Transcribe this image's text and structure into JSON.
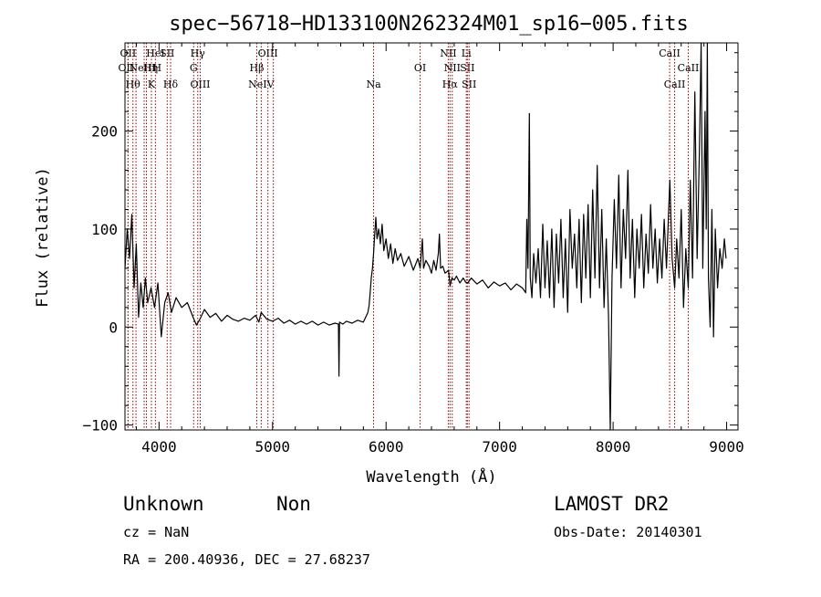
{
  "chart_data": {
    "type": "line",
    "title": "spec−56718−HD133100N262324M01_sp16−005.fits",
    "xlabel": "Wavelength (Å)",
    "ylabel": "Flux (relative)",
    "xlim": [
      3700,
      9100
    ],
    "ylim": [
      -105,
      290
    ],
    "xticks": [
      4000,
      5000,
      6000,
      7000,
      8000,
      9000
    ],
    "yticks": [
      -100,
      0,
      100,
      200
    ],
    "tick_labels_y": [
      "−100",
      "0",
      "100",
      "200"
    ],
    "grid": false,
    "series": [
      {
        "color": "#000000",
        "points": [
          [
            3700,
            60
          ],
          [
            3720,
            100
          ],
          [
            3740,
            70
          ],
          [
            3760,
            115
          ],
          [
            3780,
            40
          ],
          [
            3800,
            85
          ],
          [
            3820,
            10
          ],
          [
            3840,
            45
          ],
          [
            3860,
            20
          ],
          [
            3880,
            50
          ],
          [
            3900,
            25
          ],
          [
            3930,
            40
          ],
          [
            3960,
            20
          ],
          [
            3990,
            45
          ],
          [
            4020,
            -10
          ],
          [
            4050,
            25
          ],
          [
            4080,
            35
          ],
          [
            4110,
            15
          ],
          [
            4150,
            30
          ],
          [
            4200,
            20
          ],
          [
            4250,
            25
          ],
          [
            4300,
            10
          ],
          [
            4330,
            2
          ],
          [
            4360,
            8
          ],
          [
            4400,
            18
          ],
          [
            4450,
            10
          ],
          [
            4500,
            14
          ],
          [
            4550,
            6
          ],
          [
            4600,
            12
          ],
          [
            4650,
            8
          ],
          [
            4700,
            6
          ],
          [
            4750,
            9
          ],
          [
            4800,
            7
          ],
          [
            4850,
            12
          ],
          [
            4880,
            5
          ],
          [
            4900,
            15
          ],
          [
            4950,
            8
          ],
          [
            5000,
            6
          ],
          [
            5050,
            9
          ],
          [
            5100,
            4
          ],
          [
            5150,
            7
          ],
          [
            5200,
            3
          ],
          [
            5250,
            6
          ],
          [
            5300,
            3
          ],
          [
            5350,
            6
          ],
          [
            5400,
            2
          ],
          [
            5450,
            5
          ],
          [
            5500,
            2
          ],
          [
            5550,
            4
          ],
          [
            5580,
            3
          ],
          [
            5585,
            -50
          ],
          [
            5590,
            5
          ],
          [
            5620,
            3
          ],
          [
            5650,
            6
          ],
          [
            5700,
            4
          ],
          [
            5750,
            7
          ],
          [
            5800,
            5
          ],
          [
            5820,
            10
          ],
          [
            5840,
            15
          ],
          [
            5850,
            22
          ],
          [
            5860,
            35
          ],
          [
            5870,
            50
          ],
          [
            5880,
            60
          ],
          [
            5890,
            75
          ],
          [
            5900,
            95
          ],
          [
            5910,
            112
          ],
          [
            5920,
            90
          ],
          [
            5935,
            100
          ],
          [
            5950,
            85
          ],
          [
            5965,
            105
          ],
          [
            5980,
            78
          ],
          [
            6000,
            90
          ],
          [
            6020,
            70
          ],
          [
            6040,
            85
          ],
          [
            6060,
            65
          ],
          [
            6080,
            80
          ],
          [
            6100,
            68
          ],
          [
            6130,
            75
          ],
          [
            6160,
            62
          ],
          [
            6200,
            72
          ],
          [
            6240,
            58
          ],
          [
            6280,
            70
          ],
          [
            6300,
            60
          ],
          [
            6320,
            90
          ],
          [
            6330,
            60
          ],
          [
            6350,
            68
          ],
          [
            6380,
            62
          ],
          [
            6400,
            55
          ],
          [
            6420,
            68
          ],
          [
            6440,
            58
          ],
          [
            6460,
            75
          ],
          [
            6470,
            95
          ],
          [
            6480,
            60
          ],
          [
            6500,
            62
          ],
          [
            6520,
            55
          ],
          [
            6550,
            58
          ],
          [
            6563,
            42
          ],
          [
            6580,
            50
          ],
          [
            6600,
            48
          ],
          [
            6620,
            52
          ],
          [
            6650,
            45
          ],
          [
            6680,
            50
          ],
          [
            6700,
            46
          ],
          [
            6720,
            45
          ],
          [
            6750,
            50
          ],
          [
            6800,
            44
          ],
          [
            6850,
            48
          ],
          [
            6900,
            40
          ],
          [
            6950,
            46
          ],
          [
            7000,
            42
          ],
          [
            7050,
            45
          ],
          [
            7100,
            38
          ],
          [
            7150,
            44
          ],
          [
            7200,
            40
          ],
          [
            7230,
            35
          ],
          [
            7240,
            110
          ],
          [
            7250,
            60
          ],
          [
            7262,
            218
          ],
          [
            7270,
            50
          ],
          [
            7285,
            30
          ],
          [
            7300,
            75
          ],
          [
            7320,
            45
          ],
          [
            7340,
            80
          ],
          [
            7360,
            30
          ],
          [
            7380,
            105
          ],
          [
            7400,
            40
          ],
          [
            7420,
            88
          ],
          [
            7440,
            30
          ],
          [
            7460,
            100
          ],
          [
            7480,
            20
          ],
          [
            7500,
            95
          ],
          [
            7520,
            45
          ],
          [
            7540,
            110
          ],
          [
            7560,
            30
          ],
          [
            7580,
            90
          ],
          [
            7600,
            15
          ],
          [
            7620,
            120
          ],
          [
            7640,
            60
          ],
          [
            7660,
            95
          ],
          [
            7680,
            40
          ],
          [
            7700,
            110
          ],
          [
            7720,
            25
          ],
          [
            7740,
            115
          ],
          [
            7760,
            50
          ],
          [
            7780,
            125
          ],
          [
            7800,
            30
          ],
          [
            7820,
            140
          ],
          [
            7840,
            50
          ],
          [
            7860,
            165
          ],
          [
            7880,
            40
          ],
          [
            7900,
            120
          ],
          [
            7920,
            20
          ],
          [
            7940,
            90
          ],
          [
            7960,
            10
          ],
          [
            7975,
            -105
          ],
          [
            7990,
            50
          ],
          [
            8010,
            130
          ],
          [
            8030,
            60
          ],
          [
            8050,
            155
          ],
          [
            8070,
            40
          ],
          [
            8090,
            120
          ],
          [
            8110,
            70
          ],
          [
            8130,
            160
          ],
          [
            8150,
            50
          ],
          [
            8170,
            110
          ],
          [
            8190,
            30
          ],
          [
            8210,
            100
          ],
          [
            8230,
            60
          ],
          [
            8250,
            115
          ],
          [
            8270,
            40
          ],
          [
            8290,
            95
          ],
          [
            8310,
            55
          ],
          [
            8330,
            125
          ],
          [
            8350,
            60
          ],
          [
            8370,
            100
          ],
          [
            8390,
            45
          ],
          [
            8410,
            90
          ],
          [
            8430,
            50
          ],
          [
            8450,
            110
          ],
          [
            8470,
            60
          ],
          [
            8500,
            150
          ],
          [
            8520,
            70
          ],
          [
            8542,
            40
          ],
          [
            8560,
            90
          ],
          [
            8580,
            50
          ],
          [
            8600,
            120
          ],
          [
            8620,
            20
          ],
          [
            8640,
            80
          ],
          [
            8662,
            40
          ],
          [
            8680,
            150
          ],
          [
            8700,
            50
          ],
          [
            8720,
            240
          ],
          [
            8740,
            70
          ],
          [
            8760,
            180
          ],
          [
            8775,
            290
          ],
          [
            8790,
            60
          ],
          [
            8810,
            220
          ],
          [
            8820,
            100
          ],
          [
            8830,
            290
          ],
          [
            8840,
            50
          ],
          [
            8855,
            0
          ],
          [
            8870,
            120
          ],
          [
            8885,
            -10
          ],
          [
            8900,
            100
          ],
          [
            8920,
            40
          ],
          [
            8940,
            80
          ],
          [
            8960,
            60
          ],
          [
            8980,
            90
          ],
          [
            8995,
            70
          ]
        ]
      }
    ],
    "line_color": "#990000",
    "spectral_lines": [
      {
        "wave": 3727,
        "label": "OII",
        "row": 0,
        "dx": 0
      },
      {
        "wave": 3727,
        "label": "OII",
        "row": 1,
        "dx": -2
      },
      {
        "wave": 3770,
        "label": "Hθ",
        "row": 2,
        "dx": 0
      },
      {
        "wave": 3797,
        "label": "Hη",
        "row": 1,
        "dx": 16
      },
      {
        "wave": 3869,
        "label": "NeIII",
        "row": 1,
        "dx": -2
      },
      {
        "wave": 3889,
        "label": "HeI",
        "row": 0,
        "dx": 10
      },
      {
        "wave": 3933,
        "label": "K",
        "row": 2,
        "dx": 0
      },
      {
        "wave": 3968,
        "label": "H",
        "row": 1,
        "dx": 2
      },
      {
        "wave": 4072,
        "label": "SII",
        "row": 0,
        "dx": 0
      },
      {
        "wave": 4102,
        "label": "Hδ",
        "row": 2,
        "dx": 0
      },
      {
        "wave": 4305,
        "label": "G",
        "row": 1,
        "dx": 0
      },
      {
        "wave": 4341,
        "label": "Hγ",
        "row": 0,
        "dx": 0
      },
      {
        "wave": 4363,
        "label": "OIII",
        "row": 2,
        "dx": 0
      },
      {
        "wave": 4861,
        "label": "Hβ",
        "row": 1,
        "dx": 0
      },
      {
        "wave": 4900,
        "label": "NeIV",
        "row": 2,
        "dx": 0
      },
      {
        "wave": 4959,
        "label": "OIII",
        "row": 0,
        "dx": 0
      },
      {
        "wave": 5007,
        "label": "",
        "row": 0,
        "dx": 0
      },
      {
        "wave": 5890,
        "label": "Na",
        "row": 2,
        "dx": 0
      },
      {
        "wave": 6300,
        "label": "OI",
        "row": 1,
        "dx": 0
      },
      {
        "wave": 6548,
        "label": "NII",
        "row": 0,
        "dx": 0
      },
      {
        "wave": 6563,
        "label": "Hα",
        "row": 2,
        "dx": 0
      },
      {
        "wave": 6583,
        "label": "NII",
        "row": 1,
        "dx": 0
      },
      {
        "wave": 6707,
        "label": "Li",
        "row": 0,
        "dx": 0
      },
      {
        "wave": 6716,
        "label": "SII",
        "row": 1,
        "dx": 0
      },
      {
        "wave": 6731,
        "label": "SII",
        "row": 2,
        "dx": 0
      },
      {
        "wave": 8498,
        "label": "CaII",
        "row": 0,
        "dx": 0
      },
      {
        "wave": 8542,
        "label": "CaII",
        "row": 2,
        "dx": 0
      },
      {
        "wave": 8662,
        "label": "CaII",
        "row": 1,
        "dx": 0
      }
    ]
  },
  "info": {
    "class_label": "Unknown",
    "subclass_label": "Non",
    "cz": "cz = NaN",
    "coords": "RA = 200.40936, DEC =  27.68237",
    "survey": "LAMOST DR2",
    "obs_date": "Obs-Date: 20140301"
  }
}
